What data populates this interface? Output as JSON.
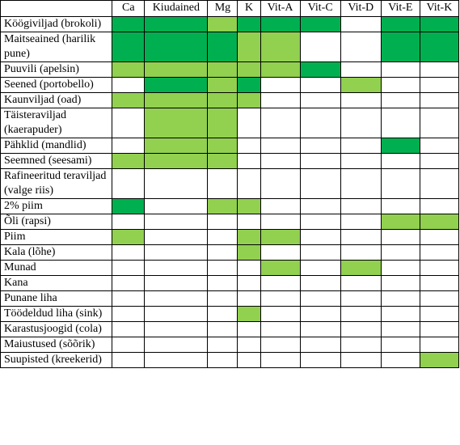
{
  "table": {
    "corner": "",
    "columns": [
      "Ca",
      "Kiudained",
      "Mg",
      "K",
      "Vit-A",
      "Vit-C",
      "Vit-D",
      "Vit-E",
      "Vit-K"
    ],
    "legend_colors": {
      "none": "#ffffff",
      "light": "#92d050",
      "dark": "#00b050"
    },
    "rows": [
      {
        "label": "Köögiviljad (brokoli)",
        "levels": [
          2,
          2,
          1,
          2,
          2,
          2,
          0,
          2,
          2
        ]
      },
      {
        "label": "Maitseained (harilik pune)",
        "levels": [
          2,
          2,
          2,
          1,
          1,
          0,
          0,
          2,
          2
        ]
      },
      {
        "label": "Puuvili (apelsin)",
        "levels": [
          1,
          1,
          1,
          1,
          1,
          2,
          0,
          0,
          0
        ]
      },
      {
        "label": "Seened (portobello)",
        "levels": [
          0,
          2,
          1,
          2,
          0,
          0,
          1,
          0,
          0
        ]
      },
      {
        "label": "Kaunviljad (oad)",
        "levels": [
          1,
          1,
          1,
          1,
          0,
          0,
          0,
          0,
          0
        ]
      },
      {
        "label": "Täisteraviljad (kaerapuder)",
        "levels": [
          0,
          1,
          1,
          0,
          0,
          0,
          0,
          0,
          0
        ]
      },
      {
        "label": "Pähklid (mandlid)",
        "levels": [
          0,
          1,
          1,
          0,
          0,
          0,
          0,
          2,
          0
        ]
      },
      {
        "label": "Seemned (seesami)",
        "levels": [
          1,
          1,
          1,
          0,
          0,
          0,
          0,
          0,
          0
        ]
      },
      {
        "label": "Rafineeritud teraviljad (valge riis)",
        "levels": [
          0,
          0,
          0,
          0,
          0,
          0,
          0,
          0,
          0
        ]
      },
      {
        "label": "2% piim",
        "levels": [
          2,
          0,
          1,
          1,
          0,
          0,
          0,
          0,
          0
        ]
      },
      {
        "label": "Õli (rapsi)",
        "levels": [
          0,
          0,
          0,
          0,
          0,
          0,
          0,
          1,
          1
        ]
      },
      {
        "label": "Piim",
        "levels": [
          1,
          0,
          0,
          1,
          1,
          0,
          0,
          0,
          0
        ]
      },
      {
        "label": "Kala (lõhe)",
        "levels": [
          0,
          0,
          0,
          1,
          0,
          0,
          0,
          0,
          0
        ]
      },
      {
        "label": "Munad",
        "levels": [
          0,
          0,
          0,
          0,
          1,
          0,
          1,
          0,
          0
        ]
      },
      {
        "label": "Kana",
        "levels": [
          0,
          0,
          0,
          0,
          0,
          0,
          0,
          0,
          0
        ]
      },
      {
        "label": "Punane liha",
        "levels": [
          0,
          0,
          0,
          0,
          0,
          0,
          0,
          0,
          0
        ]
      },
      {
        "label": "Töödeldud liha (sink)",
        "levels": [
          0,
          0,
          0,
          1,
          0,
          0,
          0,
          0,
          0
        ]
      },
      {
        "label": "Karastusjoogid (cola)",
        "levels": [
          0,
          0,
          0,
          0,
          0,
          0,
          0,
          0,
          0
        ]
      },
      {
        "label": "Maiustused (sõõrik)",
        "levels": [
          0,
          0,
          0,
          0,
          0,
          0,
          0,
          0,
          0
        ]
      },
      {
        "label": "Suupisted (kreekerid)",
        "levels": [
          0,
          0,
          0,
          0,
          0,
          0,
          0,
          0,
          1
        ]
      }
    ]
  }
}
